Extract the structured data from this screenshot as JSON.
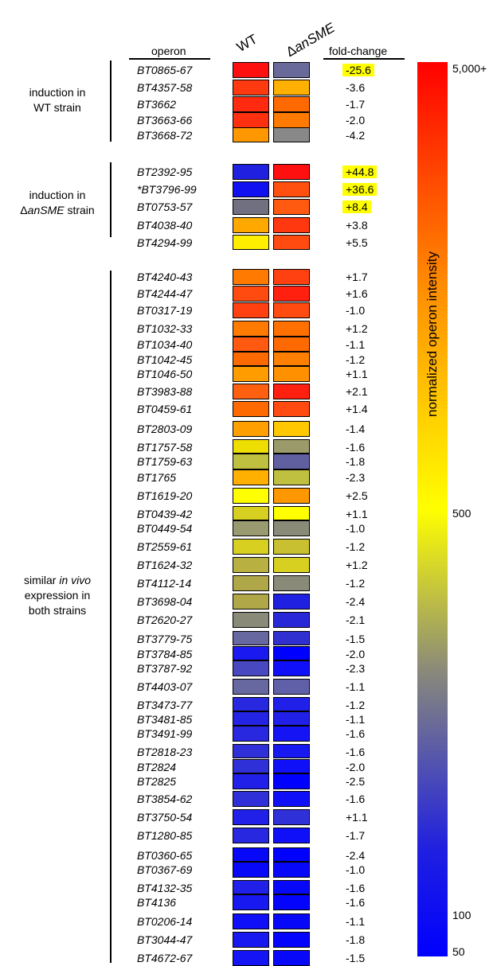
{
  "headers": {
    "operon": "operon",
    "wt": "WT",
    "mutant_prefix": "Δ",
    "mutant_italic": "anSME",
    "fold_change": "fold-change"
  },
  "groups": [
    {
      "line1": "induction in",
      "line2": "WT strain",
      "line3": ""
    },
    {
      "line1": "induction in",
      "line2_prefix": "Δ",
      "line2_italic": "anSME",
      "line2_suffix": " strain"
    },
    {
      "line1_pre": "similar ",
      "line1_italic": "in vivo",
      "line2": "expression in",
      "line3": "both strains"
    }
  ],
  "colorbar": {
    "title": "normalized operon intensity",
    "ticks": [
      "5,000+",
      "500",
      "100",
      "50"
    ],
    "stops": [
      "#ff0000",
      "#ff8c00",
      "#ffff00",
      "#8a8a7a",
      "#2020e0",
      "#0000ff"
    ]
  },
  "chart_data": {
    "type": "heatmap",
    "columns": [
      "WT",
      "ΔanSME",
      "fold-change"
    ],
    "colorbar_label": "normalized operon intensity",
    "colorbar_ticks": [
      "5,000+",
      "500",
      "100",
      "50"
    ],
    "rows": [
      {
        "operon": "BT0865-67",
        "wt": "#ff1010",
        "mut": "#6a6a9a",
        "fc": "-25.6",
        "hl": true
      },
      {
        "operon": "BT4357-58",
        "wt": "#ff3a10",
        "mut": "#ffb000",
        "fc": "-3.6",
        "hl": false
      },
      {
        "operon": "BT3662",
        "wt": "#ff2a10",
        "mut": "#ff6a00",
        "fc": "-1.7",
        "hl": false
      },
      {
        "operon": "BT3663-66",
        "wt": "#ff3010",
        "mut": "#ff7a00",
        "fc": "-2.0",
        "hl": false
      },
      {
        "operon": "BT3668-72",
        "wt": "#ff9800",
        "mut": "#888888",
        "fc": "-4.2",
        "hl": false
      },
      {
        "operon": "BT2392-95",
        "wt": "#2020e0",
        "mut": "#ff1010",
        "fc": "+44.8",
        "hl": true
      },
      {
        "operon": "*BT3796-99",
        "wt": "#1010f0",
        "mut": "#ff5010",
        "fc": "+36.6",
        "hl": true
      },
      {
        "operon": "BT0753-57",
        "wt": "#707080",
        "mut": "#ff5a10",
        "fc": "+8.4",
        "hl": true
      },
      {
        "operon": "BT4038-40",
        "wt": "#ffa800",
        "mut": "#ff3810",
        "fc": "+3.8",
        "hl": false
      },
      {
        "operon": "BT4294-99",
        "wt": "#ffee00",
        "mut": "#ff4a10",
        "fc": "+5.5",
        "hl": false
      },
      {
        "operon": "BT4240-43",
        "wt": "#ff7a00",
        "mut": "#ff4010",
        "fc": "+1.7",
        "hl": false
      },
      {
        "operon": "BT4244-47",
        "wt": "#ff4a10",
        "mut": "#ff2010",
        "fc": "+1.6",
        "hl": false
      },
      {
        "operon": "BT0317-19",
        "wt": "#ff4010",
        "mut": "#ff4a10",
        "fc": "-1.0",
        "hl": false
      },
      {
        "operon": "BT1032-33",
        "wt": "#ff7a00",
        "mut": "#ff7000",
        "fc": "+1.2",
        "hl": false
      },
      {
        "operon": "BT1034-40",
        "wt": "#ff5a10",
        "mut": "#ff6a00",
        "fc": "-1.1",
        "hl": false
      },
      {
        "operon": "BT1042-45",
        "wt": "#ff6a00",
        "mut": "#ff8000",
        "fc": "-1.2",
        "hl": false
      },
      {
        "operon": "BT1046-50",
        "wt": "#ff9c00",
        "mut": "#ff9000",
        "fc": "+1.1",
        "hl": false
      },
      {
        "operon": "BT3983-88",
        "wt": "#ff6010",
        "mut": "#ff2010",
        "fc": "+2.1",
        "hl": false
      },
      {
        "operon": "BT0459-61",
        "wt": "#ff6a00",
        "mut": "#ff4a10",
        "fc": "+1.4",
        "hl": false
      },
      {
        "operon": "BT2803-09",
        "wt": "#ffa000",
        "mut": "#ffc800",
        "fc": "-1.4",
        "hl": false
      },
      {
        "operon": "BT1757-58",
        "wt": "#eedd00",
        "mut": "#9a9a6a",
        "fc": "-1.6",
        "hl": false
      },
      {
        "operon": "BT1759-63",
        "wt": "#c0c040",
        "mut": "#6060a0",
        "fc": "-1.8",
        "hl": false
      },
      {
        "operon": "BT1765",
        "wt": "#ffb000",
        "mut": "#c0c040",
        "fc": "-2.3",
        "hl": false
      },
      {
        "operon": "BT1619-20",
        "wt": "#ffff00",
        "mut": "#ff9800",
        "fc": "+2.5",
        "hl": false
      },
      {
        "operon": "BT0439-42",
        "wt": "#d8d020",
        "mut": "#ffff00",
        "fc": "+1.1",
        "hl": false
      },
      {
        "operon": "BT0449-54",
        "wt": "#9a9a70",
        "mut": "#8a8a78",
        "fc": "-1.0",
        "hl": false
      },
      {
        "operon": "BT2559-61",
        "wt": "#d8d020",
        "mut": "#c8c030",
        "fc": "-1.2",
        "hl": false
      },
      {
        "operon": "BT1624-32",
        "wt": "#b8b040",
        "mut": "#d8d020",
        "fc": "+1.2",
        "hl": false
      },
      {
        "operon": "BT4112-14",
        "wt": "#b0a848",
        "mut": "#8a8a78",
        "fc": "-1.2",
        "hl": false
      },
      {
        "operon": "BT3698-04",
        "wt": "#b0a848",
        "mut": "#2020e0",
        "fc": "-2.4",
        "hl": false
      },
      {
        "operon": "BT2620-27",
        "wt": "#8a8a78",
        "mut": "#2828d8",
        "fc": "-2.1",
        "hl": false
      },
      {
        "operon": "BT3779-75",
        "wt": "#6868a0",
        "mut": "#3030d0",
        "fc": "-1.5",
        "hl": false
      },
      {
        "operon": "BT3784-85",
        "wt": "#1a1af0",
        "mut": "#0000ff",
        "fc": "-2.0",
        "hl": false
      },
      {
        "operon": "BT3787-92",
        "wt": "#4848c0",
        "mut": "#1010f8",
        "fc": "-2.3",
        "hl": false
      },
      {
        "operon": "BT4403-07",
        "wt": "#6868a0",
        "mut": "#6060a8",
        "fc": "-1.1",
        "hl": false
      },
      {
        "operon": "BT3473-77",
        "wt": "#2828e0",
        "mut": "#2020e8",
        "fc": "-1.2",
        "hl": false
      },
      {
        "operon": "BT3481-85",
        "wt": "#2424e4",
        "mut": "#2020e8",
        "fc": "-1.1",
        "hl": false
      },
      {
        "operon": "BT3491-99",
        "wt": "#2828e0",
        "mut": "#1414f4",
        "fc": "-1.6",
        "hl": false
      },
      {
        "operon": "BT2818-23",
        "wt": "#3030d8",
        "mut": "#1818f0",
        "fc": "-1.6",
        "hl": false
      },
      {
        "operon": "BT2824",
        "wt": "#3030d8",
        "mut": "#1010f8",
        "fc": "-2.0",
        "hl": false
      },
      {
        "operon": "BT2825",
        "wt": "#2020e8",
        "mut": "#0000ff",
        "fc": "-2.5",
        "hl": false
      },
      {
        "operon": "BT3854-62",
        "wt": "#3030d8",
        "mut": "#1010f8",
        "fc": "-1.6",
        "hl": false
      },
      {
        "operon": "BT3750-54",
        "wt": "#2020e8",
        "mut": "#3030d8",
        "fc": "+1.1",
        "hl": false
      },
      {
        "operon": "BT1280-85",
        "wt": "#2828e0",
        "mut": "#1010f8",
        "fc": "-1.7",
        "hl": false
      },
      {
        "operon": "BT0360-65",
        "wt": "#0808f8",
        "mut": "#0000ff",
        "fc": "-2.4",
        "hl": false
      },
      {
        "operon": "BT0367-69",
        "wt": "#0808f8",
        "mut": "#0808f8",
        "fc": "-1.0",
        "hl": false
      },
      {
        "operon": "BT4132-35",
        "wt": "#2020e8",
        "mut": "#0808f8",
        "fc": "-1.6",
        "hl": false
      },
      {
        "operon": "BT4136",
        "wt": "#1818f0",
        "mut": "#0404fc",
        "fc": "-1.6",
        "hl": false
      },
      {
        "operon": "BT0206-14",
        "wt": "#1010f8",
        "mut": "#0808f8",
        "fc": "-1.1",
        "hl": false
      },
      {
        "operon": "BT3044-47",
        "wt": "#1818f0",
        "mut": "#0404fc",
        "fc": "-1.8",
        "hl": false
      },
      {
        "operon": "BT4672-67",
        "wt": "#1414f4",
        "mut": "#0808f8",
        "fc": "-1.5",
        "hl": false
      }
    ]
  }
}
